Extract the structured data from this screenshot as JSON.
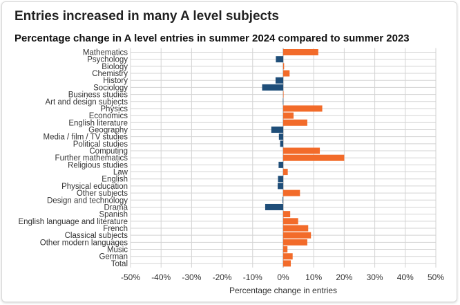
{
  "header": {
    "title": "Entries increased in many A level subjects",
    "subtitle": "Percentage change in A level entries in summer 2024 compared to summer 2023"
  },
  "colors": {
    "increase": "#f26b2a",
    "decrease": "#1f4e79",
    "grid": "#d3d3d3",
    "text": "#333333"
  },
  "chart_data": {
    "type": "bar",
    "orientation": "horizontal",
    "categories": [
      "Mathematics",
      "Psychology",
      "Biology",
      "Chemistry",
      "History",
      "Sociology",
      "Business studies",
      "Art and design subjects",
      "Physics",
      "Economics",
      "English literature",
      "Geography",
      "Media / film / TV studies",
      "Political studies",
      "Computing",
      "Further mathematics",
      "Religious studies",
      "Law",
      "English",
      "Physical education",
      "Other subjects",
      "Design and technology",
      "Drama",
      "Spanish",
      "English language and literature",
      "French",
      "Classical subjects",
      "Other modern languages",
      "Music",
      "German",
      "Total"
    ],
    "values": [
      11.5,
      -2.4,
      0.3,
      2.1,
      -2.5,
      -6.9,
      0.1,
      -0.1,
      12.8,
      3.4,
      7.9,
      -3.9,
      -1.4,
      -1.0,
      12.0,
      20.0,
      -1.5,
      1.5,
      -1.7,
      -1.8,
      5.5,
      -0.2,
      -5.9,
      2.3,
      4.9,
      8.2,
      9.1,
      7.9,
      1.4,
      3.1,
      2.5
    ],
    "xlabel": "Percentage change in entries",
    "ylabel": "",
    "xlim": [
      -50,
      50
    ],
    "xticks": [
      -50,
      -40,
      -30,
      -20,
      -10,
      0,
      10,
      20,
      30,
      40,
      50
    ],
    "xtick_labels": [
      "-50%",
      "-40%",
      "-30%",
      "-20%",
      "-10%",
      "0%",
      "10%",
      "20%",
      "30%",
      "40%",
      "50%"
    ],
    "grid": true
  }
}
